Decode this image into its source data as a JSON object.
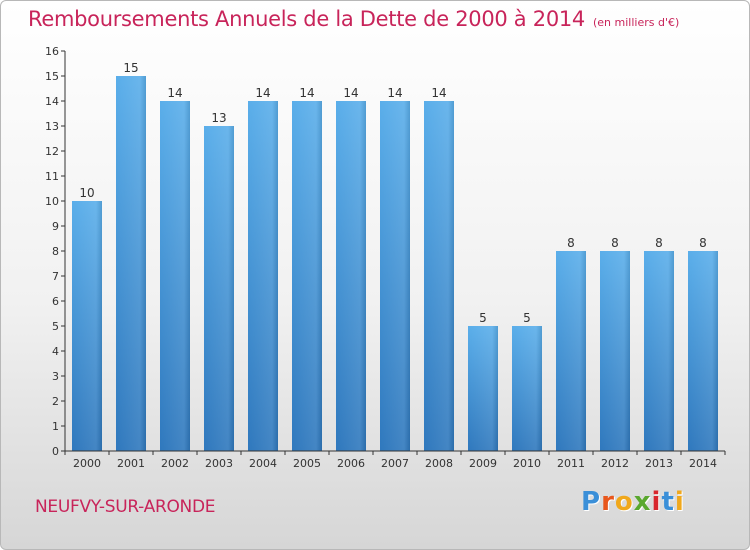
{
  "chart_data": {
    "type": "bar",
    "title": "Remboursements Annuels de la Dette de 2000 à 2014",
    "subtitle": "(en milliers d'€)",
    "categories": [
      "2000",
      "2001",
      "2002",
      "2003",
      "2004",
      "2005",
      "2006",
      "2007",
      "2008",
      "2009",
      "2010",
      "2011",
      "2012",
      "2013",
      "2014"
    ],
    "values": [
      10,
      15,
      14,
      13,
      14,
      14,
      14,
      14,
      14,
      5,
      5,
      8,
      8,
      8,
      8
    ],
    "ylim": [
      0,
      16
    ],
    "yticks": [
      "0",
      "1",
      "2",
      "3",
      "4",
      "5",
      "6",
      "7",
      "8",
      "9",
      "10",
      "11",
      "12",
      "13",
      "14",
      "15",
      "16"
    ],
    "xlabel": "",
    "ylabel": "",
    "grid": false,
    "bar_color_top": "#5aaeea",
    "bar_color_bottom": "#2f78bd"
  },
  "footer": {
    "commune": "NEUFVY-SUR-ARONDE"
  },
  "brand": {
    "letters": [
      "P",
      "r",
      "o",
      "x",
      "i",
      "t",
      "i"
    ],
    "colors": [
      "#3a8fd8",
      "#e8571c",
      "#f0a81c",
      "#5aa82e",
      "#d8262e",
      "#3a8fd8",
      "#f0a81c"
    ]
  },
  "colors": {
    "accent": "#c8245a",
    "axis": "#333333"
  }
}
